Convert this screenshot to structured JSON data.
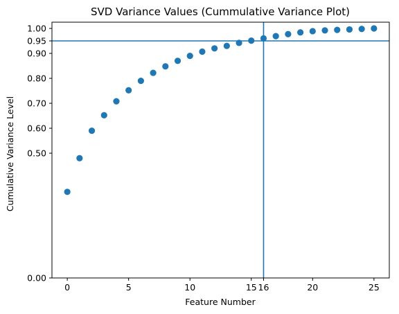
{
  "chart_data": {
    "type": "scatter",
    "title": "SVD Variance Values (Cummulative Variance Plot)",
    "xlabel": "Feature Number",
    "ylabel": "Cumulative Variance Level",
    "xlim": [
      -1.25,
      26.25
    ],
    "ylim": [
      0.0,
      1.025
    ],
    "x": [
      0,
      1,
      2,
      3,
      4,
      5,
      6,
      7,
      8,
      9,
      10,
      11,
      12,
      13,
      14,
      15,
      16,
      17,
      18,
      19,
      20,
      21,
      22,
      23,
      24,
      25
    ],
    "y": [
      0.345,
      0.48,
      0.59,
      0.652,
      0.708,
      0.752,
      0.79,
      0.822,
      0.848,
      0.87,
      0.89,
      0.907,
      0.92,
      0.93,
      0.942,
      0.951,
      0.96,
      0.969,
      0.977,
      0.984,
      0.989,
      0.992,
      0.994,
      0.996,
      0.998,
      1.0
    ],
    "xticks": [
      0,
      5,
      10,
      15,
      16,
      20,
      25
    ],
    "xtick_labels": [
      "0",
      "5",
      "10",
      "15",
      "16",
      "20",
      "25"
    ],
    "yticks": [
      0.0,
      0.5,
      0.6,
      0.7,
      0.8,
      0.9,
      0.95,
      1.0
    ],
    "ytick_labels": [
      "0.00",
      "0.50",
      "0.60",
      "0.70",
      "0.80",
      "0.90",
      "0.95",
      "1.00"
    ],
    "reference_lines": {
      "horizontal_y": 0.95,
      "vertical_x": 16
    },
    "grid": false,
    "marker_color": "#1f77b4",
    "line_color": "#1f77b4"
  }
}
